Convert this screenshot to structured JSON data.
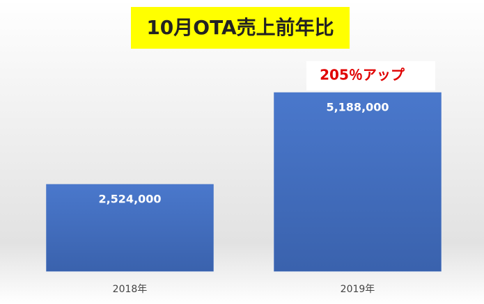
{
  "chart_data": {
    "type": "bar",
    "title": "10月OTA売上前年比",
    "annotation": "205％アップ",
    "categories": [
      "2018年",
      "2019年"
    ],
    "values": [
      2524000,
      5188000
    ],
    "value_labels": [
      "2,524,000",
      "5,188,000"
    ],
    "color": "#4472c4"
  }
}
